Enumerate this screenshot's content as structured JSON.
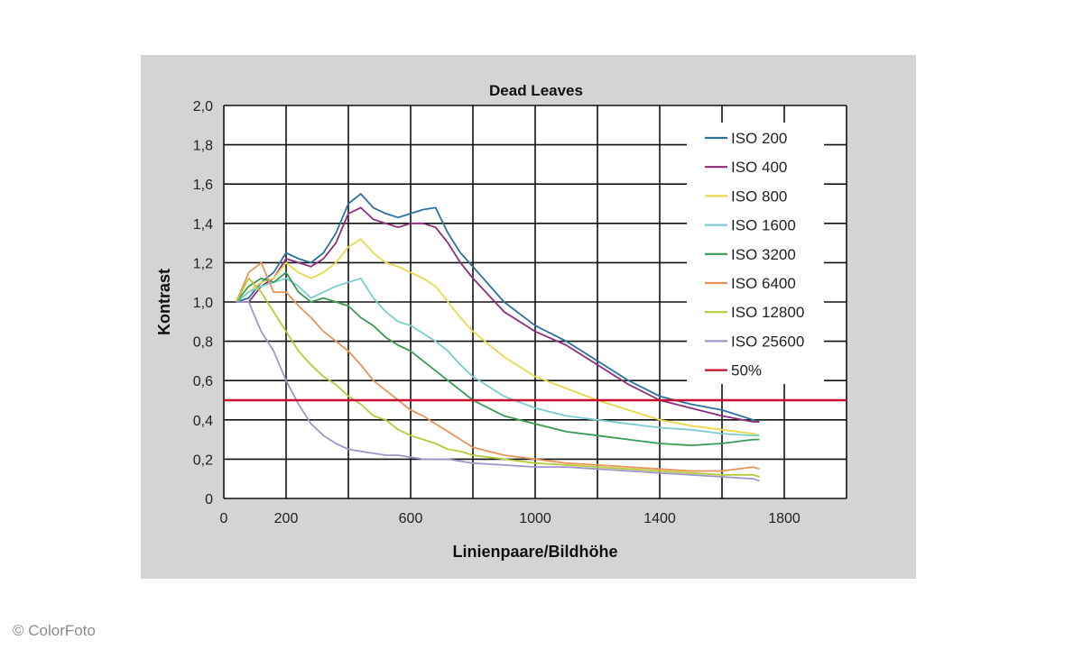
{
  "credit": "© ColorFoto",
  "chart_data": {
    "type": "line",
    "title": "Dead Leaves",
    "xlabel": "Linienpaare/Bildhöhe",
    "ylabel": "Kontrast",
    "xlim": [
      0,
      2000
    ],
    "ylim": [
      0,
      2.0
    ],
    "x_ticks": [
      0,
      200,
      600,
      1000,
      1400,
      1800
    ],
    "x_tick_labels": [
      "0",
      "200",
      "600",
      "1000",
      "1400",
      "1800"
    ],
    "x_grid": [
      0,
      200,
      400,
      600,
      800,
      1000,
      1200,
      1400,
      1600,
      1800,
      2000
    ],
    "y_ticks": [
      0,
      0.2,
      0.4,
      0.6,
      0.8,
      1.0,
      1.2,
      1.4,
      1.6,
      1.8,
      2.0
    ],
    "y_tick_labels": [
      "0",
      "0,2",
      "0,4",
      "0,6",
      "0,8",
      "1,0",
      "1,2",
      "1,4",
      "1,6",
      "1,8",
      "2,0"
    ],
    "grid": true,
    "legend_position": "top-right",
    "reference_line": {
      "name": "50%",
      "y": 0.5,
      "color": "#c8102e"
    },
    "series": [
      {
        "name": "ISO 200",
        "color": "#2e6f9e",
        "x": [
          40,
          80,
          120,
          160,
          200,
          240,
          280,
          320,
          360,
          400,
          440,
          480,
          520,
          560,
          600,
          640,
          680,
          720,
          760,
          800,
          900,
          1000,
          1100,
          1200,
          1300,
          1400,
          1500,
          1600,
          1700,
          1720
        ],
        "y": [
          1.0,
          1.02,
          1.1,
          1.15,
          1.25,
          1.22,
          1.2,
          1.25,
          1.35,
          1.5,
          1.55,
          1.48,
          1.45,
          1.43,
          1.45,
          1.47,
          1.48,
          1.35,
          1.25,
          1.18,
          1.0,
          0.88,
          0.8,
          0.7,
          0.6,
          0.52,
          0.48,
          0.45,
          0.4,
          0.39
        ]
      },
      {
        "name": "ISO 400",
        "color": "#8a2d7a",
        "x": [
          40,
          80,
          120,
          160,
          200,
          240,
          280,
          320,
          360,
          400,
          440,
          480,
          520,
          560,
          600,
          640,
          680,
          720,
          760,
          800,
          900,
          1000,
          1100,
          1200,
          1300,
          1400,
          1500,
          1600,
          1700,
          1720
        ],
        "y": [
          1.0,
          1.0,
          1.08,
          1.12,
          1.22,
          1.2,
          1.18,
          1.22,
          1.3,
          1.45,
          1.48,
          1.42,
          1.4,
          1.38,
          1.4,
          1.4,
          1.38,
          1.3,
          1.2,
          1.12,
          0.95,
          0.85,
          0.78,
          0.68,
          0.58,
          0.5,
          0.46,
          0.42,
          0.39,
          0.39
        ]
      },
      {
        "name": "ISO 800",
        "color": "#e8d94a",
        "x": [
          40,
          80,
          120,
          160,
          200,
          240,
          280,
          320,
          360,
          400,
          440,
          480,
          520,
          560,
          600,
          640,
          680,
          720,
          760,
          800,
          900,
          1000,
          1100,
          1200,
          1300,
          1400,
          1500,
          1600,
          1700,
          1720
        ],
        "y": [
          1.0,
          1.05,
          1.1,
          1.12,
          1.2,
          1.15,
          1.12,
          1.15,
          1.2,
          1.28,
          1.32,
          1.25,
          1.2,
          1.18,
          1.15,
          1.12,
          1.08,
          1.0,
          0.92,
          0.85,
          0.72,
          0.62,
          0.56,
          0.5,
          0.45,
          0.4,
          0.37,
          0.35,
          0.33,
          0.32
        ]
      },
      {
        "name": "ISO 1600",
        "color": "#7ccbcf",
        "x": [
          40,
          80,
          120,
          160,
          200,
          240,
          280,
          320,
          360,
          400,
          440,
          480,
          520,
          560,
          600,
          640,
          680,
          720,
          760,
          800,
          900,
          1000,
          1100,
          1200,
          1300,
          1400,
          1500,
          1600,
          1700,
          1720
        ],
        "y": [
          1.0,
          1.05,
          1.08,
          1.1,
          1.12,
          1.08,
          1.02,
          1.05,
          1.08,
          1.1,
          1.12,
          1.02,
          0.95,
          0.9,
          0.88,
          0.84,
          0.8,
          0.75,
          0.68,
          0.62,
          0.52,
          0.46,
          0.42,
          0.4,
          0.38,
          0.36,
          0.35,
          0.33,
          0.32,
          0.32
        ]
      },
      {
        "name": "ISO 3200",
        "color": "#3a9a55",
        "x": [
          40,
          80,
          120,
          160,
          200,
          240,
          280,
          320,
          360,
          400,
          440,
          480,
          520,
          560,
          600,
          640,
          680,
          720,
          760,
          800,
          900,
          1000,
          1100,
          1200,
          1300,
          1400,
          1500,
          1600,
          1700,
          1720
        ],
        "y": [
          1.0,
          1.08,
          1.12,
          1.1,
          1.15,
          1.05,
          1.0,
          1.02,
          1.0,
          0.98,
          0.92,
          0.88,
          0.82,
          0.78,
          0.75,
          0.7,
          0.65,
          0.6,
          0.55,
          0.5,
          0.42,
          0.38,
          0.34,
          0.32,
          0.3,
          0.28,
          0.27,
          0.28,
          0.3,
          0.3
        ]
      },
      {
        "name": "ISO 6400",
        "color": "#e8935a",
        "x": [
          40,
          80,
          120,
          160,
          200,
          240,
          280,
          320,
          360,
          400,
          440,
          480,
          520,
          560,
          600,
          640,
          680,
          720,
          760,
          800,
          900,
          1000,
          1100,
          1200,
          1300,
          1400,
          1500,
          1600,
          1700,
          1720
        ],
        "y": [
          1.0,
          1.15,
          1.2,
          1.05,
          1.05,
          0.98,
          0.92,
          0.85,
          0.8,
          0.75,
          0.68,
          0.6,
          0.55,
          0.5,
          0.45,
          0.42,
          0.38,
          0.34,
          0.3,
          0.26,
          0.22,
          0.2,
          0.18,
          0.17,
          0.16,
          0.15,
          0.14,
          0.14,
          0.16,
          0.15
        ]
      },
      {
        "name": "ISO 12800",
        "color": "#b8c93a",
        "x": [
          40,
          80,
          120,
          160,
          200,
          240,
          280,
          320,
          360,
          400,
          440,
          480,
          520,
          560,
          600,
          640,
          680,
          720,
          760,
          800,
          900,
          1000,
          1100,
          1200,
          1300,
          1400,
          1500,
          1600,
          1700,
          1720
        ],
        "y": [
          1.0,
          1.12,
          1.05,
          0.95,
          0.85,
          0.75,
          0.68,
          0.62,
          0.58,
          0.52,
          0.48,
          0.42,
          0.4,
          0.35,
          0.32,
          0.3,
          0.28,
          0.25,
          0.24,
          0.22,
          0.2,
          0.18,
          0.17,
          0.16,
          0.15,
          0.14,
          0.13,
          0.12,
          0.12,
          0.11
        ]
      },
      {
        "name": "ISO 25600",
        "color": "#9e97c9",
        "x": [
          40,
          80,
          120,
          160,
          200,
          240,
          280,
          320,
          360,
          400,
          440,
          480,
          520,
          560,
          600,
          640,
          680,
          720,
          760,
          800,
          900,
          1000,
          1100,
          1200,
          1300,
          1400,
          1500,
          1600,
          1700,
          1720
        ],
        "y": [
          1.0,
          1.0,
          0.85,
          0.75,
          0.6,
          0.48,
          0.38,
          0.32,
          0.28,
          0.25,
          0.24,
          0.23,
          0.22,
          0.22,
          0.21,
          0.2,
          0.2,
          0.2,
          0.19,
          0.18,
          0.17,
          0.16,
          0.16,
          0.15,
          0.14,
          0.13,
          0.12,
          0.11,
          0.1,
          0.09
        ]
      }
    ]
  }
}
